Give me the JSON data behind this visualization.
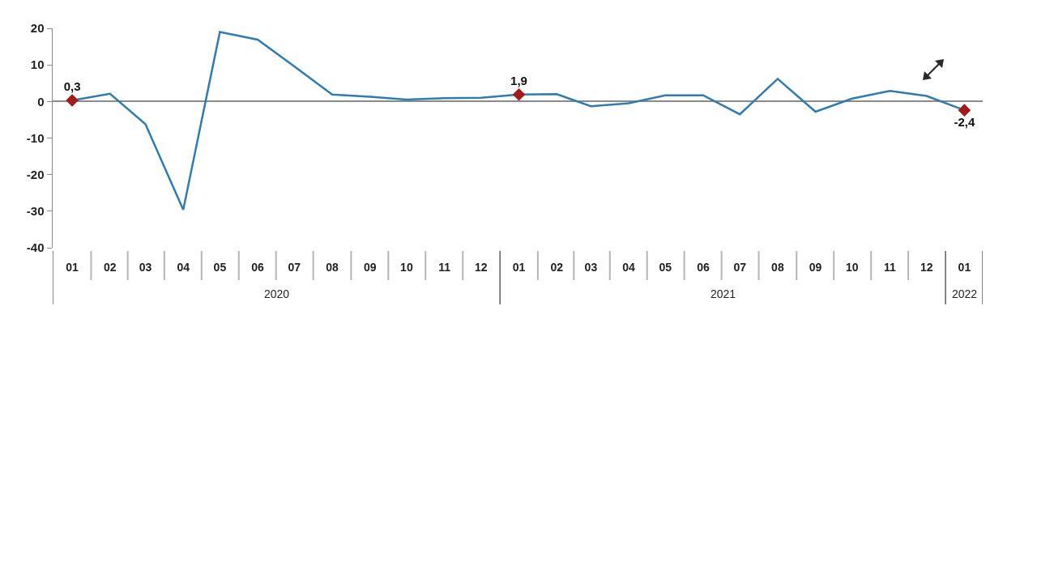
{
  "chart_data": {
    "type": "line",
    "x": [
      "2020-01",
      "2020-02",
      "2020-03",
      "2020-04",
      "2020-05",
      "2020-06",
      "2020-07",
      "2020-08",
      "2020-09",
      "2020-10",
      "2020-11",
      "2020-12",
      "2021-01",
      "2021-02",
      "2021-03",
      "2021-04",
      "2021-05",
      "2021-06",
      "2021-07",
      "2021-08",
      "2021-09",
      "2021-10",
      "2021-11",
      "2021-12",
      "2022-01"
    ],
    "xlim": [
      "2019-12-16",
      "2022-01-16"
    ],
    "xticks": [
      {
        "value": "2020-01",
        "label": "01"
      },
      {
        "value": "2020-02",
        "label": "02"
      },
      {
        "value": "2020-03",
        "label": "03"
      },
      {
        "value": "2020-04",
        "label": "04"
      },
      {
        "value": "2020-05",
        "label": "05"
      },
      {
        "value": "2020-06",
        "label": "06"
      },
      {
        "value": "2020-07",
        "label": "07"
      },
      {
        "value": "2020-08",
        "label": "08"
      },
      {
        "value": "2020-09",
        "label": "09"
      },
      {
        "value": "2020-10",
        "label": "10"
      },
      {
        "value": "2020-11",
        "label": "11"
      },
      {
        "value": "2020-12",
        "label": "12"
      },
      {
        "value": "2021-01",
        "label": "01"
      },
      {
        "value": "2021-02",
        "label": "02"
      },
      {
        "value": "2021-03",
        "label": "03"
      },
      {
        "value": "2021-04",
        "label": "04"
      },
      {
        "value": "2021-05",
        "label": "05"
      },
      {
        "value": "2021-06",
        "label": "06"
      },
      {
        "value": "2021-07",
        "label": "07"
      },
      {
        "value": "2021-08",
        "label": "08"
      },
      {
        "value": "2021-09",
        "label": "09"
      },
      {
        "value": "2021-10",
        "label": "10"
      },
      {
        "value": "2021-11",
        "label": "11"
      },
      {
        "value": "2021-12",
        "label": "12"
      },
      {
        "value": "2022-01",
        "label": "01"
      }
    ],
    "annotations": [
      "2020",
      "2021",
      "2022"
    ],
    "ylim": [
      -40,
      20
    ],
    "yticks": [
      -40,
      -30,
      -20,
      -10,
      0,
      10,
      20
    ],
    "series": [
      {
        "color": "#2f7db0",
        "marker": "none",
        "values": [
          0.3,
          2.1,
          -6.2,
          -29.6,
          19.0,
          16.9,
          9.6,
          1.9,
          1.3,
          0.5,
          0.9,
          1.0,
          1.9,
          2.0,
          -1.3,
          -0.5,
          1.7,
          1.7,
          -3.5,
          6.2,
          -2.8,
          0.8,
          2.9,
          1.5,
          -2.4
        ]
      },
      {
        "type": "scatter",
        "x": [
          "2020-01",
          "2021-01",
          "2022-01"
        ],
        "color": "#a31a1a",
        "marker": "diamond",
        "values": [
          0.3,
          1.9,
          -2.4
        ],
        "value_labels": [
          "0,3",
          "1,9",
          "-2,4"
        ]
      }
    ]
  }
}
